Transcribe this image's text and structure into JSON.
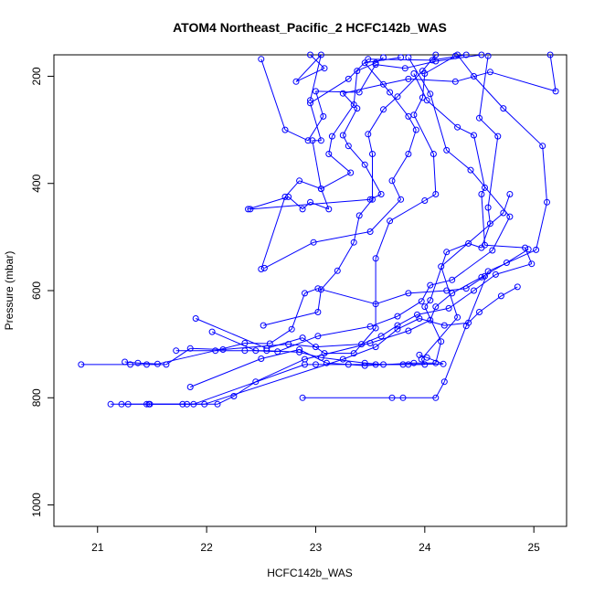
{
  "chart_data": {
    "type": "line",
    "title": "ATOM4 Northeast_Pacific_2 HCFC142b_WAS",
    "xlabel": "HCFC142b_WAS",
    "ylabel": "Pressure (mbar)",
    "xlim": [
      20.6,
      25.3
    ],
    "ylim": [
      1040,
      160
    ],
    "y_reversed": true,
    "grid": false,
    "line_color": "#0000ff",
    "marker": "open-circle",
    "x_ticks": [
      21,
      22,
      23,
      24,
      25
    ],
    "y_ticks": [
      200,
      400,
      600,
      800,
      1000
    ],
    "series": [
      {
        "values": [
          [
            21.12,
            812
          ],
          [
            21.28,
            812
          ],
          [
            21.48,
            812
          ],
          [
            21.82,
            812
          ],
          [
            22.1,
            812
          ],
          [
            22.25,
            797
          ],
          [
            22.45,
            770
          ],
          [
            22.9,
            728
          ],
          [
            23.5,
            698
          ],
          [
            23.85,
            675
          ],
          [
            24.05,
            655
          ],
          [
            24.1,
            630
          ],
          [
            24.25,
            605
          ],
          [
            24.52,
            575
          ],
          [
            24.75,
            548
          ],
          [
            24.95,
            523
          ]
        ]
      },
      {
        "values": [
          [
            21.45,
            812
          ],
          [
            21.78,
            812
          ],
          [
            21.98,
            812
          ],
          [
            23.25,
            728
          ],
          [
            23.55,
            705
          ],
          [
            23.75,
            672
          ],
          [
            23.95,
            652
          ],
          [
            24.18,
            665
          ],
          [
            24.4,
            660
          ],
          [
            24.5,
            640
          ],
          [
            24.7,
            610
          ],
          [
            24.85,
            593
          ]
        ]
      },
      {
        "values": [
          [
            21.22,
            812
          ],
          [
            21.47,
            812
          ],
          [
            21.88,
            812
          ],
          [
            22.9,
            738
          ],
          [
            23.0,
            738
          ],
          [
            23.3,
            738
          ],
          [
            23.55,
            738
          ],
          [
            23.8,
            738
          ],
          [
            24.17,
            737
          ],
          [
            24.02,
            725
          ],
          [
            23.95,
            720
          ]
        ]
      },
      {
        "values": [
          [
            20.85,
            738
          ],
          [
            21.3,
            738
          ],
          [
            21.45,
            738
          ],
          [
            21.63,
            738
          ],
          [
            21.85,
            708
          ],
          [
            22.15,
            710
          ],
          [
            22.75,
            700
          ],
          [
            23.0,
            705
          ],
          [
            23.42,
            700
          ],
          [
            23.6,
            685
          ],
          [
            23.75,
            665
          ],
          [
            23.93,
            645
          ],
          [
            24.22,
            633
          ],
          [
            24.45,
            600
          ],
          [
            24.65,
            570
          ],
          [
            24.98,
            550
          ],
          [
            24.92,
            520
          ],
          [
            24.55,
            515
          ],
          [
            24.52,
            420
          ],
          [
            24.55,
            408
          ],
          [
            24.45,
            310
          ],
          [
            24.3,
            295
          ],
          [
            24.02,
            245
          ],
          [
            23.9,
            195
          ]
        ]
      },
      {
        "values": [
          [
            21.25,
            733
          ],
          [
            21.37,
            735
          ],
          [
            21.55,
            737
          ],
          [
            22.08,
            712
          ],
          [
            22.35,
            698
          ],
          [
            22.58,
            699
          ],
          [
            22.78,
            672
          ],
          [
            22.9,
            605
          ],
          [
            23.02,
            596
          ],
          [
            23.55,
            625
          ],
          [
            23.85,
            605
          ],
          [
            24.2,
            600
          ],
          [
            24.38,
            596
          ],
          [
            24.55,
            573
          ]
        ]
      },
      {
        "values": [
          [
            21.72,
            712
          ],
          [
            22.35,
            712
          ],
          [
            22.55,
            712
          ],
          [
            22.85,
            715
          ],
          [
            23.05,
            725
          ],
          [
            23.45,
            735
          ],
          [
            23.62,
            738
          ],
          [
            23.85,
            738
          ],
          [
            24.0,
            738
          ],
          [
            23.97,
            728
          ],
          [
            24.3,
            650
          ],
          [
            24.15,
            555
          ],
          [
            24.72,
            455
          ],
          [
            24.78,
            420
          ]
        ]
      },
      {
        "values": [
          [
            21.9,
            652
          ],
          [
            22.55,
            708
          ],
          [
            22.88,
            688
          ],
          [
            23.08,
            717
          ],
          [
            23.35,
            717
          ],
          [
            23.55,
            670
          ],
          [
            23.55,
            540
          ],
          [
            23.68,
            470
          ],
          [
            24.0,
            432
          ],
          [
            24.1,
            420
          ],
          [
            24.08,
            345
          ],
          [
            23.9,
            272
          ],
          [
            23.98,
            240
          ],
          [
            24.0,
            195
          ],
          [
            24.28,
            162
          ]
        ]
      },
      {
        "values": [
          [
            21.85,
            780
          ],
          [
            22.5,
            727
          ],
          [
            22.85,
            710
          ],
          [
            23.1,
            735
          ],
          [
            23.45,
            740
          ],
          [
            23.9,
            735
          ],
          [
            24.1,
            735
          ],
          [
            24.15,
            695
          ],
          [
            24.0,
            630
          ],
          [
            24.05,
            618
          ],
          [
            24.2,
            528
          ],
          [
            24.4,
            512
          ],
          [
            24.52,
            520
          ],
          [
            24.6,
            475
          ],
          [
            24.58,
            445
          ],
          [
            24.67,
            312
          ],
          [
            24.5,
            278
          ],
          [
            24.58,
            162
          ]
        ]
      },
      {
        "values": [
          [
            22.05,
            677
          ],
          [
            22.45,
            712
          ],
          [
            22.65,
            714
          ],
          [
            23.02,
            685
          ],
          [
            23.5,
            667
          ],
          [
            23.75,
            648
          ],
          [
            23.97,
            620
          ],
          [
            24.05,
            590
          ],
          [
            24.25,
            580
          ],
          [
            24.62,
            525
          ],
          [
            24.78,
            462
          ],
          [
            24.42,
            375
          ],
          [
            24.2,
            338
          ],
          [
            24.05,
            233
          ],
          [
            23.85,
            165
          ]
        ]
      },
      {
        "values": [
          [
            22.52,
            665
          ],
          [
            23.02,
            640
          ],
          [
            23.05,
            598
          ],
          [
            23.2,
            563
          ],
          [
            23.35,
            510
          ],
          [
            23.4,
            460
          ],
          [
            23.52,
            430
          ],
          [
            23.52,
            345
          ],
          [
            23.48,
            308
          ],
          [
            23.62,
            262
          ],
          [
            23.75,
            238
          ],
          [
            23.98,
            190
          ],
          [
            24.1,
            160
          ]
        ]
      },
      {
        "values": [
          [
            22.88,
            800
          ],
          [
            23.7,
            800
          ],
          [
            23.8,
            800
          ],
          [
            24.1,
            800
          ],
          [
            24.18,
            770
          ],
          [
            24.38,
            666
          ],
          [
            24.58,
            564
          ],
          [
            25.02,
            524
          ],
          [
            25.12,
            435
          ],
          [
            25.08,
            330
          ],
          [
            24.72,
            260
          ],
          [
            24.45,
            200
          ],
          [
            24.3,
            160
          ]
        ]
      },
      {
        "values": [
          [
            22.53,
            558
          ],
          [
            22.98,
            510
          ],
          [
            23.5,
            490
          ],
          [
            23.78,
            430
          ],
          [
            23.7,
            395
          ],
          [
            23.85,
            345
          ],
          [
            23.92,
            300
          ],
          [
            23.85,
            275
          ],
          [
            23.68,
            230
          ],
          [
            23.45,
            175
          ],
          [
            23.78,
            165
          ]
        ]
      },
      {
        "values": [
          [
            22.5,
            560
          ],
          [
            22.72,
            425
          ],
          [
            22.85,
            395
          ],
          [
            23.05,
            410
          ],
          [
            23.32,
            380
          ],
          [
            23.12,
            345
          ],
          [
            23.15,
            312
          ],
          [
            23.35,
            253
          ],
          [
            23.38,
            190
          ],
          [
            23.55,
            175
          ],
          [
            23.62,
            165
          ]
        ]
      },
      {
        "values": [
          [
            22.38,
            448
          ],
          [
            22.75,
            425
          ],
          [
            22.88,
            448
          ],
          [
            22.95,
            435
          ],
          [
            23.12,
            448
          ],
          [
            23.05,
            410
          ],
          [
            22.97,
            320
          ],
          [
            23.05,
            320
          ],
          [
            22.95,
            250
          ],
          [
            23.3,
            205
          ],
          [
            23.48,
            168
          ],
          [
            24.07,
            170
          ],
          [
            24.38,
            160
          ]
        ]
      },
      {
        "values": [
          [
            22.4,
            448
          ],
          [
            23.5,
            430
          ],
          [
            23.6,
            420
          ],
          [
            23.45,
            365
          ],
          [
            23.3,
            330
          ],
          [
            23.25,
            310
          ],
          [
            23.38,
            260
          ],
          [
            23.25,
            232
          ],
          [
            23.62,
            215
          ],
          [
            23.85,
            205
          ],
          [
            24.28,
            210
          ],
          [
            24.6,
            192
          ],
          [
            25.2,
            228
          ],
          [
            25.15,
            160
          ]
        ]
      },
      {
        "values": [
          [
            22.5,
            168
          ],
          [
            22.72,
            300
          ],
          [
            22.93,
            320
          ],
          [
            23.07,
            275
          ],
          [
            23.0,
            228
          ],
          [
            23.4,
            230
          ],
          [
            23.55,
            178
          ],
          [
            23.82,
            185
          ],
          [
            24.1,
            172
          ],
          [
            24.52,
            160
          ]
        ]
      },
      {
        "values": [
          [
            22.95,
            245
          ],
          [
            23.05,
            160
          ],
          [
            22.82,
            210
          ],
          [
            23.08,
            185
          ],
          [
            22.95,
            160
          ]
        ]
      }
    ]
  }
}
